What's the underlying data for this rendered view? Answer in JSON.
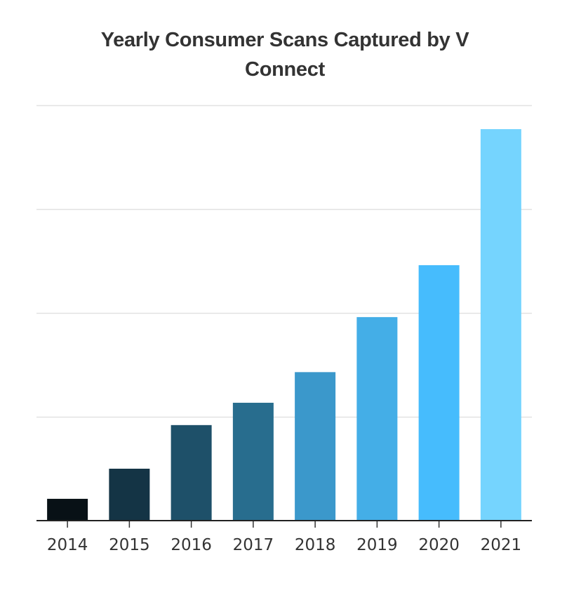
{
  "chart_data": {
    "type": "bar",
    "title_lines": [
      "Yearly Consumer Scans Captured by V",
      "Connect"
    ],
    "xlabel": "",
    "ylabel": "",
    "categories": [
      "2014",
      "2015",
      "2016",
      "2017",
      "2018",
      "2019",
      "2020",
      "2021"
    ],
    "values": [
      0.42,
      1.0,
      1.84,
      2.27,
      2.86,
      3.92,
      4.92,
      7.54
    ],
    "ylim": [
      0,
      8
    ],
    "y_gridlines": [
      0,
      2,
      4,
      6,
      8
    ],
    "y_tick_labels_shown": false,
    "grid": true,
    "legend": "none",
    "colors": [
      "#081116",
      "#143445",
      "#1e5069",
      "#286d8e",
      "#3b98cb",
      "#44aee7",
      "#46bcfd",
      "#75d4fe"
    ]
  }
}
